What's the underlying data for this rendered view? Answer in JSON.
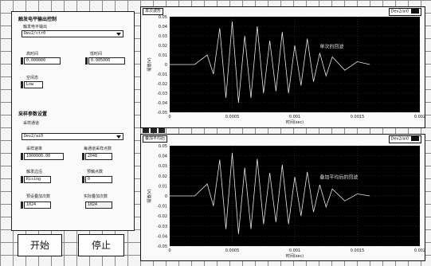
{
  "trigger": {
    "heading": "触发电平输出控制",
    "channel_label": "触发电平输出",
    "channel_value": "Dev2/ctr0",
    "high_time_label": "高时间",
    "high_time_value": "0.000000",
    "low_time_label": "低时间",
    "low_time_value": "0.005000",
    "idle_label": "空闲态",
    "idle_value": "Low"
  },
  "sampling": {
    "heading": "采样参数设置",
    "channel_label": "采样通道",
    "channel_value": "Dev2/ai0",
    "rate_label": "采样速率",
    "rate_value": "1000000.00",
    "samples_label": "每通道采样点数",
    "samples_value": "2048",
    "edge_label": "触发边沿",
    "edge_value": "Rising",
    "pretrigger_label": "预触点数",
    "pretrigger_value": "0",
    "avg_label": "预设叠加次数",
    "avg_value": "1024",
    "actual_label": "实际叠加次数",
    "actual_value": "1024"
  },
  "buttons": {
    "start": "开始",
    "stop": "停止"
  },
  "graphs": [
    {
      "title": "单次波形",
      "legend": "Dev2/ai0",
      "annotation": "单次的回波",
      "ylabel": "幅值(V)",
      "xlabel": "时间(sec)"
    },
    {
      "title": "叠加平均后",
      "legend": "Dev2/ai0",
      "annotation": "叠加平均后的回波",
      "ylabel": "幅值(V)",
      "xlabel": "时间(sec)"
    }
  ],
  "chart_data": [
    {
      "type": "line",
      "xlim": [
        0,
        0.002
      ],
      "ylim": [
        -0.05,
        0.05
      ],
      "x_ticks": [
        "0",
        "0.0005",
        "0.001",
        "0.0015",
        "0.002"
      ],
      "y_ticks": [
        "0.05",
        "0.04",
        "0.03",
        "0.02",
        "0.01",
        "0",
        "-0.01",
        "-0.02",
        "-0.03",
        "-0.04",
        "-0.05"
      ],
      "grid": true,
      "series": [
        {
          "x": [
            0,
            0.0001,
            0.0002,
            0.0003,
            0.00035,
            0.0004,
            0.00045,
            0.0005,
            0.00055,
            0.0006,
            0.00065,
            0.0007,
            0.00075,
            0.0008,
            0.00085,
            0.0009,
            0.00095,
            0.001,
            0.00105,
            0.0011,
            0.00115,
            0.0012,
            0.00125,
            0.0013,
            0.0014,
            0.0015,
            0.0016
          ],
          "y": [
            0,
            0,
            0,
            0.01,
            -0.01,
            0.038,
            -0.035,
            0.045,
            -0.04,
            0.03,
            -0.035,
            0.04,
            -0.03,
            0.025,
            -0.028,
            0.034,
            -0.03,
            0.02,
            -0.022,
            0.027,
            -0.018,
            0.012,
            -0.012,
            0.008,
            -0.006,
            0.003,
            0
          ]
        }
      ]
    },
    {
      "type": "line",
      "xlim": [
        0,
        0.002
      ],
      "ylim": [
        -0.05,
        0.05
      ],
      "x_ticks": [
        "0",
        "0.0005",
        "0.001",
        "0.0015",
        "0.002"
      ],
      "y_ticks": [
        "0.05",
        "0.04",
        "0.03",
        "0.02",
        "0.01",
        "0",
        "-0.01",
        "-0.02",
        "-0.03",
        "-0.04",
        "-0.05"
      ],
      "grid": true,
      "series": [
        {
          "x": [
            0,
            0.0001,
            0.0002,
            0.0003,
            0.00035,
            0.0004,
            0.00045,
            0.0005,
            0.00055,
            0.0006,
            0.00065,
            0.0007,
            0.00075,
            0.0008,
            0.00085,
            0.0009,
            0.00095,
            0.001,
            0.00105,
            0.0011,
            0.00115,
            0.0012,
            0.00125,
            0.0013,
            0.0014,
            0.0015,
            0.0016
          ],
          "y": [
            0,
            0,
            0,
            0.012,
            -0.01,
            0.036,
            -0.033,
            0.043,
            -0.038,
            0.028,
            -0.033,
            0.037,
            -0.028,
            0.023,
            -0.026,
            0.031,
            -0.028,
            0.019,
            -0.02,
            0.024,
            -0.016,
            0.011,
            -0.011,
            0.007,
            -0.005,
            0.002,
            0
          ]
        }
      ]
    }
  ]
}
